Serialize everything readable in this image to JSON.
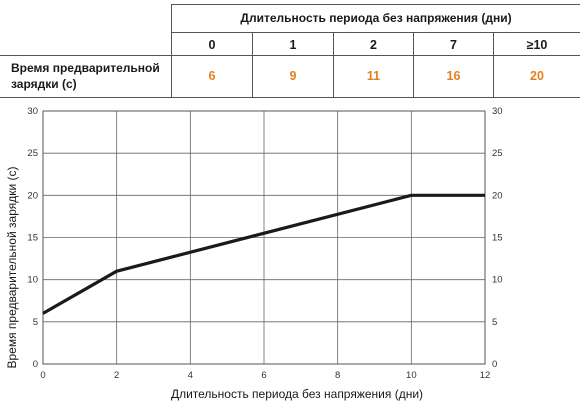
{
  "table": {
    "header": "Длительность периода без напряжения (дни)",
    "columns": [
      "0",
      "1",
      "2",
      "7",
      "≥10"
    ],
    "row_label_line1": "Время предварительной",
    "row_label_line2": "зарядки (с)",
    "values": [
      "6",
      "9",
      "11",
      "16",
      "20"
    ],
    "value_color": "#e87e22"
  },
  "chart_data": {
    "type": "line",
    "xlabel": "Длительность периода без напряжения (дни)",
    "ylabel": "Время предварительной зарядки (с)",
    "xlim": [
      0,
      12
    ],
    "ylim": [
      0,
      30
    ],
    "x_ticks": [
      "0",
      "2",
      "4",
      "6",
      "8",
      "10",
      "12"
    ],
    "y_ticks": [
      "0",
      "5",
      "10",
      "15",
      "20",
      "25",
      "30"
    ],
    "grid": true,
    "series": [
      {
        "x": [
          0,
          2,
          10,
          12
        ],
        "y": [
          6,
          11,
          20,
          20
        ],
        "color": "#1a1a1a"
      }
    ]
  }
}
